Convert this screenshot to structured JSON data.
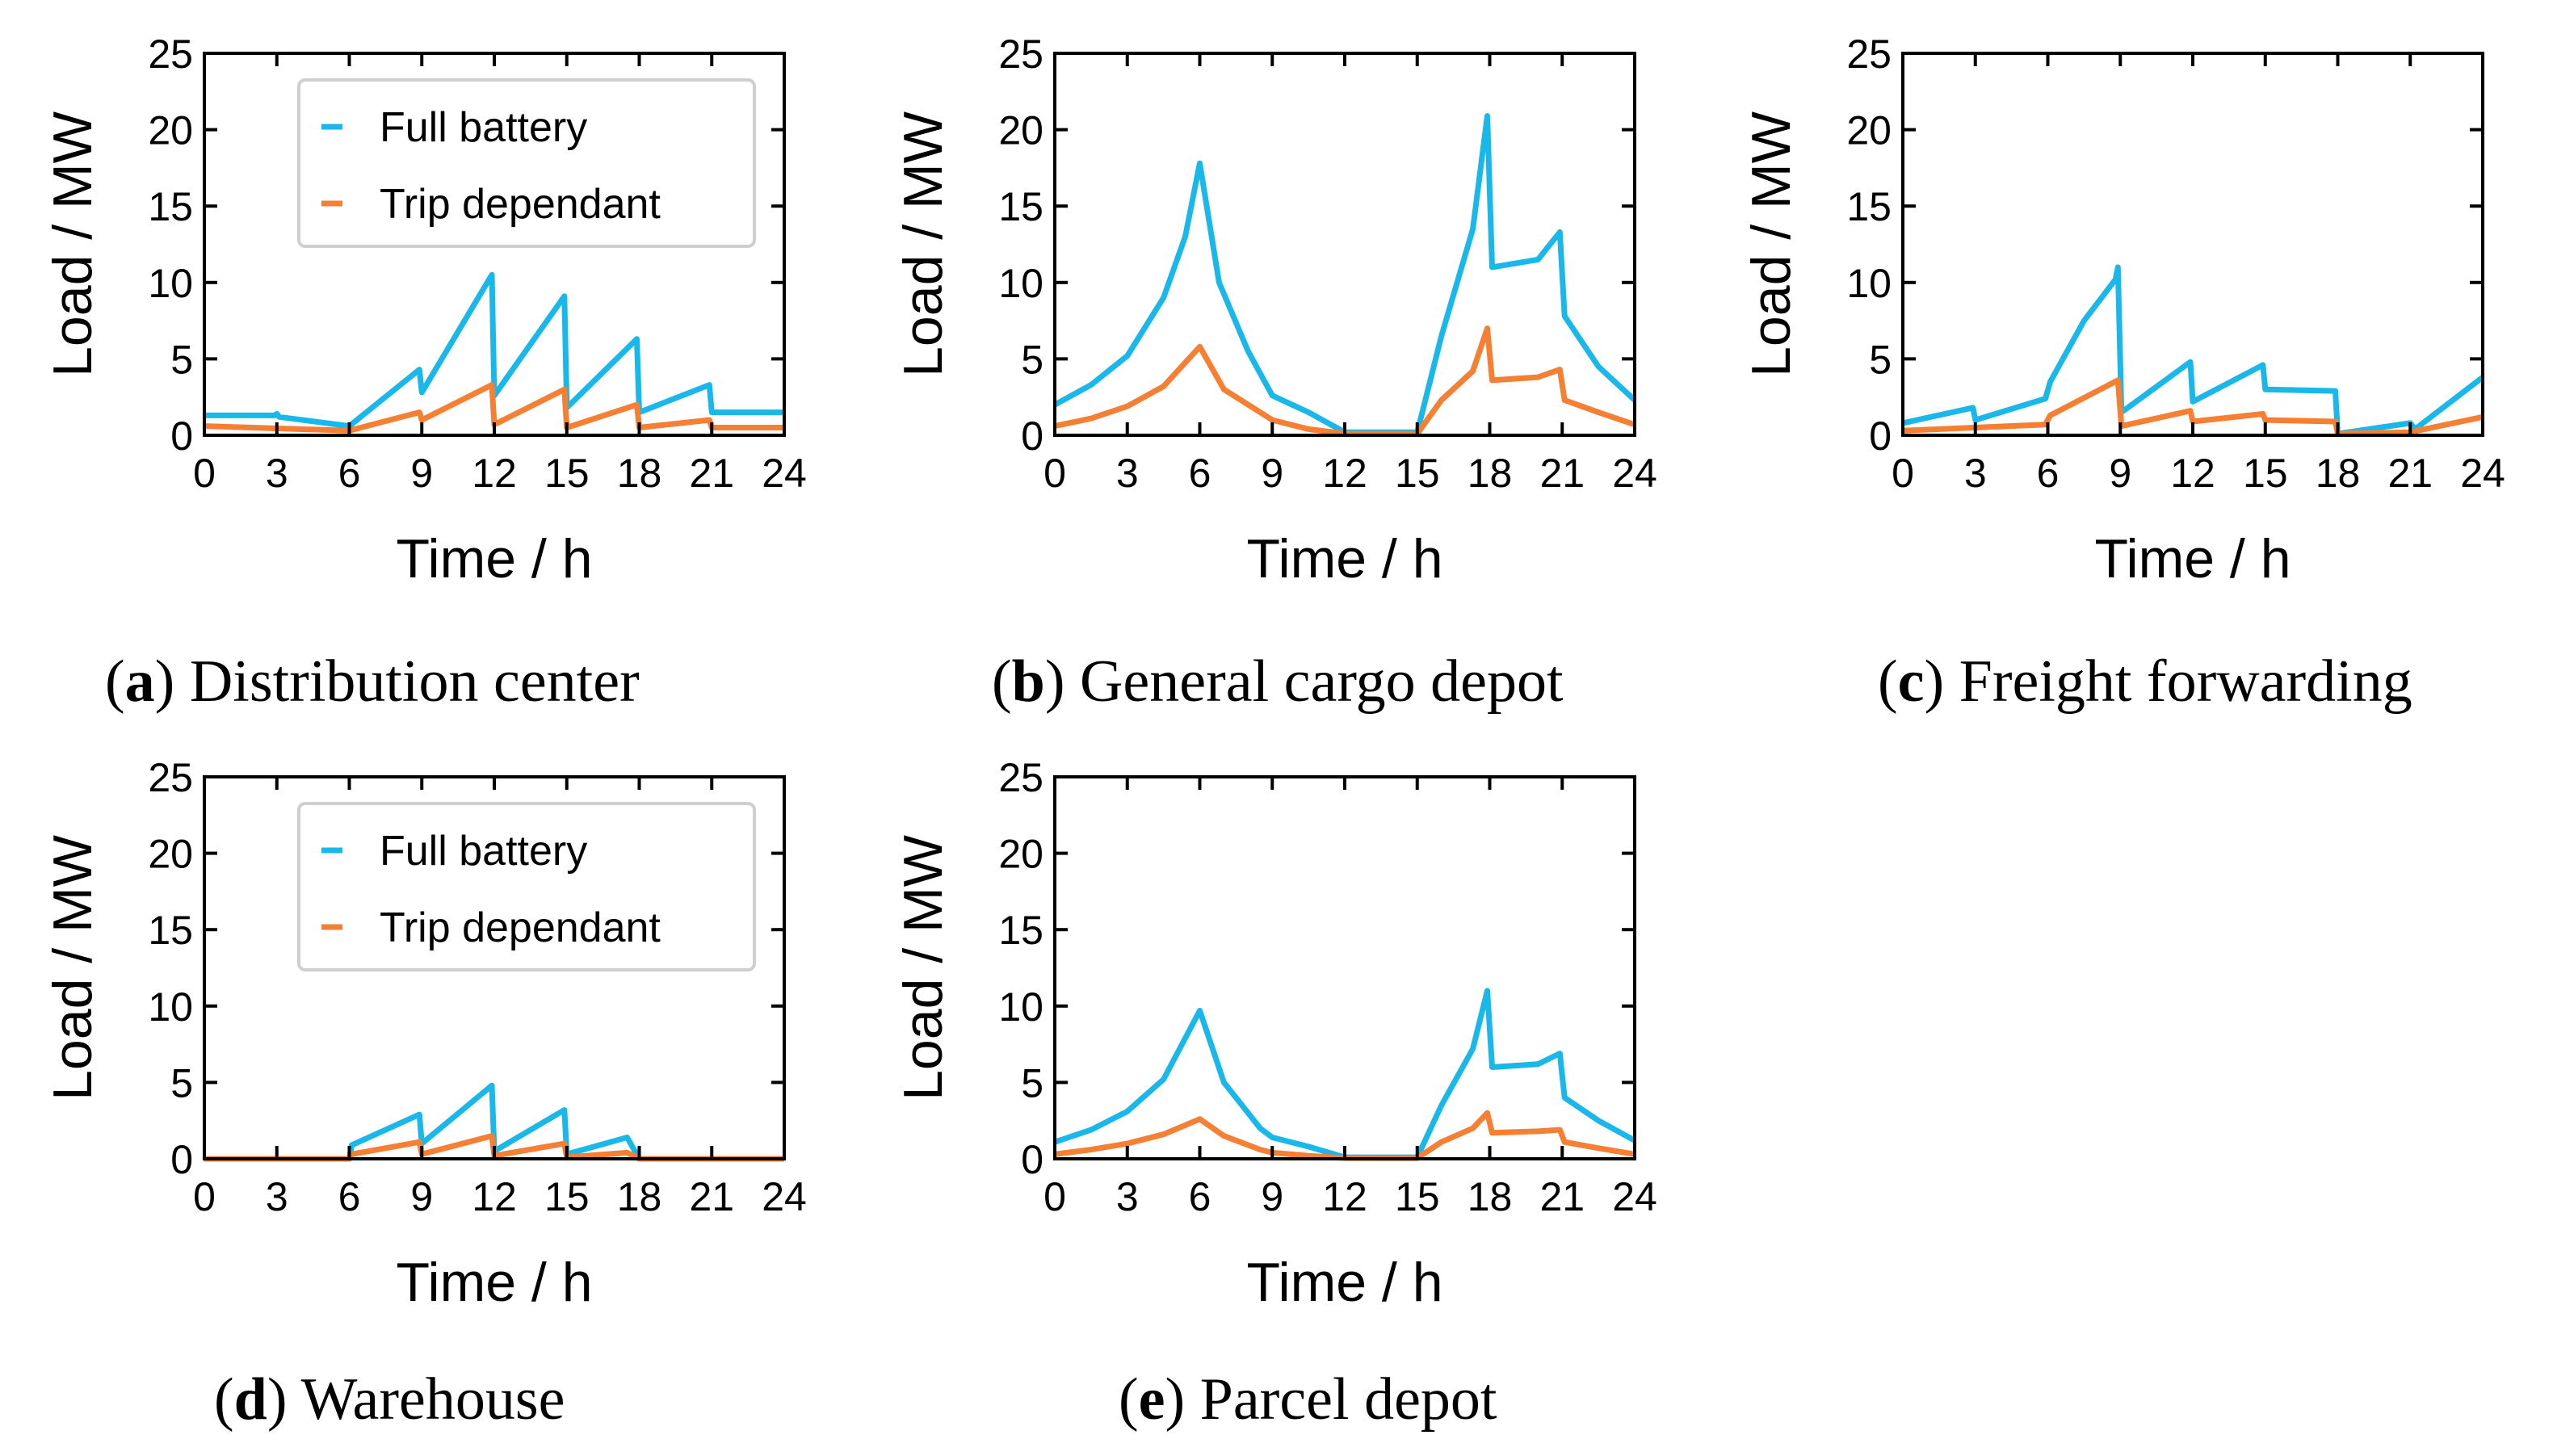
{
  "colors": {
    "full": "#1ab8ea",
    "trip": "#f57f33",
    "axis": "#000000"
  },
  "chart_data": [
    {
      "id": "a",
      "type": "line",
      "caption_letter": "a",
      "caption_text": "Distribution center",
      "xlabel": "Time / h",
      "ylabel": "Load / MW",
      "xlim": [
        0,
        24
      ],
      "ylim": [
        0,
        25
      ],
      "xticks": [
        "0",
        "3",
        "6",
        "9",
        "12",
        "15",
        "18",
        "21",
        "24"
      ],
      "yticks": [
        "0",
        "5",
        "10",
        "15",
        "20",
        "25"
      ],
      "legend": {
        "show": true,
        "position": "top-center",
        "entries": [
          "Full battery",
          "Trip dependant"
        ]
      },
      "series": [
        {
          "name": "Full battery",
          "key": "full",
          "points": [
            [
              0,
              1.3
            ],
            [
              2.9,
              1.3
            ],
            [
              3,
              1.4
            ],
            [
              3.1,
              1.2
            ],
            [
              6,
              0.6
            ],
            [
              8.9,
              4.3
            ],
            [
              9,
              2.8
            ],
            [
              11.9,
              10.5
            ],
            [
              12,
              2.6
            ],
            [
              14.9,
              9.1
            ],
            [
              15,
              1.8
            ],
            [
              17.9,
              6.3
            ],
            [
              18,
              1.5
            ],
            [
              20.9,
              3.3
            ],
            [
              21,
              1.5
            ],
            [
              24,
              1.5
            ]
          ]
        },
        {
          "name": "Trip dependant",
          "key": "trip",
          "points": [
            [
              0,
              0.6
            ],
            [
              6,
              0.3
            ],
            [
              8.9,
              1.5
            ],
            [
              9,
              1.0
            ],
            [
              11.9,
              3.3
            ],
            [
              12,
              0.7
            ],
            [
              14.9,
              3.0
            ],
            [
              15,
              0.5
            ],
            [
              17.9,
              2.0
            ],
            [
              18,
              0.5
            ],
            [
              20.9,
              1.0
            ],
            [
              21,
              0.5
            ],
            [
              24,
              0.5
            ]
          ]
        }
      ]
    },
    {
      "id": "b",
      "type": "line",
      "caption_letter": "b",
      "caption_text": "General cargo depot",
      "xlabel": "Time / h",
      "ylabel": "Load / MW",
      "xlim": [
        0,
        24
      ],
      "ylim": [
        0,
        25
      ],
      "xticks": [
        "0",
        "3",
        "6",
        "9",
        "12",
        "15",
        "18",
        "21",
        "24"
      ],
      "yticks": [
        "0",
        "5",
        "10",
        "15",
        "20",
        "25"
      ],
      "legend": {
        "show": false,
        "entries": []
      },
      "series": [
        {
          "name": "Full battery",
          "key": "full",
          "points": [
            [
              0,
              2.0
            ],
            [
              1.5,
              3.3
            ],
            [
              3,
              5.2
            ],
            [
              4.5,
              9.0
            ],
            [
              5.4,
              13.0
            ],
            [
              6,
              17.8
            ],
            [
              6.8,
              10.0
            ],
            [
              8,
              5.5
            ],
            [
              9,
              2.6
            ],
            [
              10.5,
              1.5
            ],
            [
              12,
              0.2
            ],
            [
              15,
              0.2
            ],
            [
              16,
              6.5
            ],
            [
              17.3,
              13.5
            ],
            [
              17.9,
              20.9
            ],
            [
              18.1,
              11.0
            ],
            [
              20,
              11.5
            ],
            [
              20.9,
              13.3
            ],
            [
              21.1,
              7.8
            ],
            [
              22.5,
              4.5
            ],
            [
              24,
              2.3
            ]
          ]
        },
        {
          "name": "Trip dependant",
          "key": "trip",
          "points": [
            [
              0,
              0.6
            ],
            [
              1.5,
              1.1
            ],
            [
              3,
              1.9
            ],
            [
              4.5,
              3.2
            ],
            [
              6,
              5.8
            ],
            [
              7,
              3.0
            ],
            [
              8.5,
              1.5
            ],
            [
              9,
              1.0
            ],
            [
              10.5,
              0.4
            ],
            [
              12,
              0.1
            ],
            [
              15,
              0.1
            ],
            [
              16,
              2.3
            ],
            [
              17.3,
              4.2
            ],
            [
              17.9,
              7.0
            ],
            [
              18.1,
              3.6
            ],
            [
              20,
              3.8
            ],
            [
              20.9,
              4.3
            ],
            [
              21.1,
              2.3
            ],
            [
              22.5,
              1.5
            ],
            [
              24,
              0.7
            ]
          ]
        }
      ]
    },
    {
      "id": "c",
      "type": "line",
      "caption_letter": "c",
      "caption_text": "Freight forwarding",
      "xlabel": "Time / h",
      "ylabel": "Load / MW",
      "xlim": [
        0,
        24
      ],
      "ylim": [
        0,
        25
      ],
      "xticks": [
        "0",
        "3",
        "6",
        "9",
        "12",
        "15",
        "18",
        "21",
        "24"
      ],
      "yticks": [
        "0",
        "5",
        "10",
        "15",
        "20",
        "25"
      ],
      "legend": {
        "show": false,
        "entries": []
      },
      "series": [
        {
          "name": "Full battery",
          "key": "full",
          "points": [
            [
              0,
              0.8
            ],
            [
              2.9,
              1.8
            ],
            [
              3,
              1.0
            ],
            [
              5.9,
              2.4
            ],
            [
              6.1,
              3.5
            ],
            [
              7.5,
              7.5
            ],
            [
              8.8,
              10.2
            ],
            [
              8.9,
              11.0
            ],
            [
              9.05,
              1.5
            ],
            [
              11.9,
              4.8
            ],
            [
              12,
              2.2
            ],
            [
              14.9,
              4.6
            ],
            [
              15,
              3.0
            ],
            [
              17.9,
              2.9
            ],
            [
              18,
              0.1
            ],
            [
              21,
              0.8
            ],
            [
              21.2,
              0.4
            ],
            [
              24,
              3.8
            ]
          ]
        },
        {
          "name": "Trip dependant",
          "key": "trip",
          "points": [
            [
              0,
              0.3
            ],
            [
              5.9,
              0.7
            ],
            [
              6.1,
              1.3
            ],
            [
              8.9,
              3.6
            ],
            [
              9.05,
              0.6
            ],
            [
              11.9,
              1.6
            ],
            [
              12,
              0.9
            ],
            [
              14.9,
              1.4
            ],
            [
              15,
              1.0
            ],
            [
              17.9,
              0.9
            ],
            [
              18,
              0.1
            ],
            [
              21,
              0.2
            ],
            [
              24,
              1.2
            ]
          ]
        }
      ]
    },
    {
      "id": "d",
      "type": "line",
      "caption_letter": "d",
      "caption_text": "Warehouse",
      "xlabel": "Time / h",
      "ylabel": "Load / MW",
      "xlim": [
        0,
        24
      ],
      "ylim": [
        0,
        25
      ],
      "xticks": [
        "0",
        "3",
        "6",
        "9",
        "12",
        "15",
        "18",
        "21",
        "24"
      ],
      "yticks": [
        "0",
        "5",
        "10",
        "15",
        "20",
        "25"
      ],
      "legend": {
        "show": true,
        "position": "top-center",
        "entries": [
          "Full battery",
          "Trip dependant"
        ]
      },
      "series": [
        {
          "name": "Full battery",
          "key": "full",
          "points": [
            [
              0,
              0
            ],
            [
              6,
              0
            ],
            [
              6.1,
              0.9
            ],
            [
              8.9,
              2.9
            ],
            [
              9,
              1.0
            ],
            [
              11.9,
              4.8
            ],
            [
              12,
              0.5
            ],
            [
              14.9,
              3.2
            ],
            [
              15,
              0.3
            ],
            [
              17.5,
              1.4
            ],
            [
              18,
              0
            ],
            [
              24,
              0
            ]
          ]
        },
        {
          "name": "Trip dependant",
          "key": "trip",
          "points": [
            [
              0,
              0
            ],
            [
              6,
              0
            ],
            [
              6.1,
              0.3
            ],
            [
              8.9,
              1.1
            ],
            [
              9,
              0.3
            ],
            [
              11.9,
              1.5
            ],
            [
              12,
              0.2
            ],
            [
              14.9,
              1.0
            ],
            [
              15,
              0.1
            ],
            [
              17.5,
              0.4
            ],
            [
              18,
              0
            ],
            [
              24,
              0
            ]
          ]
        }
      ]
    },
    {
      "id": "e",
      "type": "line",
      "caption_letter": "e",
      "caption_text": "Parcel depot",
      "xlabel": "Time / h",
      "ylabel": "Load / MW",
      "xlim": [
        0,
        24
      ],
      "ylim": [
        0,
        25
      ],
      "xticks": [
        "0",
        "3",
        "6",
        "9",
        "12",
        "15",
        "18",
        "21",
        "24"
      ],
      "yticks": [
        "0",
        "5",
        "10",
        "15",
        "20",
        "25"
      ],
      "legend": {
        "show": false,
        "entries": []
      },
      "series": [
        {
          "name": "Full battery",
          "key": "full",
          "points": [
            [
              0,
              1.1
            ],
            [
              1.5,
              1.9
            ],
            [
              3,
              3.1
            ],
            [
              4.5,
              5.2
            ],
            [
              6,
              9.7
            ],
            [
              7,
              5.0
            ],
            [
              8.5,
              2.0
            ],
            [
              9,
              1.4
            ],
            [
              10.5,
              0.8
            ],
            [
              12,
              0.1
            ],
            [
              15,
              0.1
            ],
            [
              16,
              3.5
            ],
            [
              17.3,
              7.2
            ],
            [
              17.9,
              11.0
            ],
            [
              18.1,
              6.0
            ],
            [
              20,
              6.2
            ],
            [
              20.9,
              6.9
            ],
            [
              21.1,
              4.0
            ],
            [
              22.5,
              2.5
            ],
            [
              24,
              1.2
            ]
          ]
        },
        {
          "name": "Trip dependant",
          "key": "trip",
          "points": [
            [
              0,
              0.3
            ],
            [
              1.5,
              0.6
            ],
            [
              3,
              1.0
            ],
            [
              4.5,
              1.6
            ],
            [
              6,
              2.6
            ],
            [
              7,
              1.5
            ],
            [
              8.5,
              0.6
            ],
            [
              9,
              0.4
            ],
            [
              10.5,
              0.2
            ],
            [
              12,
              0.05
            ],
            [
              15,
              0.05
            ],
            [
              16,
              1.1
            ],
            [
              17.3,
              2.0
            ],
            [
              17.9,
              3.0
            ],
            [
              18.1,
              1.7
            ],
            [
              20,
              1.8
            ],
            [
              20.9,
              1.9
            ],
            [
              21.1,
              1.1
            ],
            [
              22.5,
              0.7
            ],
            [
              24,
              0.3
            ]
          ]
        }
      ]
    }
  ]
}
